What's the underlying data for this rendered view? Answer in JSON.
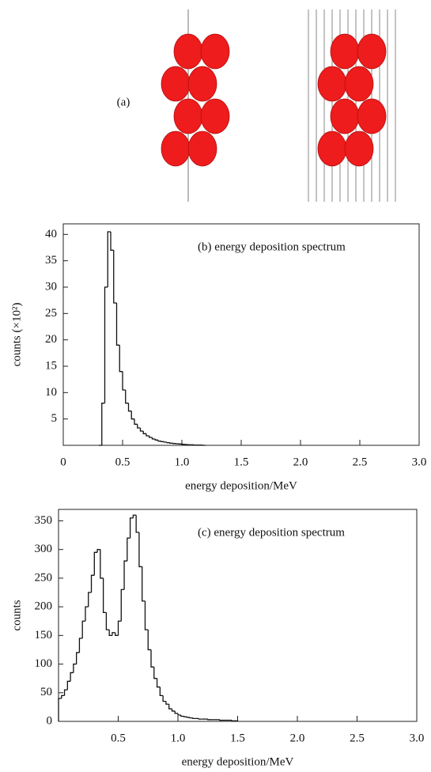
{
  "panel_a": {
    "label": "(a)"
  },
  "chart_data": [
    {
      "type": "histogram",
      "annotation": "(b)  energy deposition spectrum",
      "x_label": "energy deposition/MeV",
      "y_label": "counts (×10²)",
      "bins": [
        0.3,
        0.325,
        0.35,
        0.375,
        0.4,
        0.425,
        0.45,
        0.475,
        0.5,
        0.525,
        0.55,
        0.575,
        0.6,
        0.625,
        0.65,
        0.675,
        0.7,
        0.725,
        0.75,
        0.775,
        0.8,
        0.825,
        0.85,
        0.875,
        0.9,
        0.925,
        0.95,
        0.975,
        1.0,
        1.025,
        1.05,
        1.075,
        1.1,
        1.125,
        1.15,
        1.175,
        1.2
      ],
      "counts": [
        0,
        8,
        30,
        40.5,
        37,
        27,
        19,
        14,
        10.5,
        8,
        6.5,
        5,
        4,
        3.3,
        2.7,
        2.2,
        1.8,
        1.5,
        1.2,
        1.0,
        0.8,
        0.7,
        0.6,
        0.5,
        0.4,
        0.35,
        0.3,
        0.25,
        0.2,
        0.15,
        0.1,
        0.1,
        0.05,
        0.05,
        0.05,
        0
      ],
      "color": "#111111",
      "xlim": [
        0,
        3
      ],
      "ylim": [
        0,
        42
      ],
      "xticks": [
        0,
        0.5,
        {
          "value": 1,
          "label": "1.0"
        },
        1.5,
        {
          "value": 2,
          "label": "2.0"
        },
        2.5,
        {
          "value": 3,
          "label": "3.0"
        }
      ],
      "yticks": [
        5,
        10,
        15,
        20,
        25,
        30,
        35,
        40
      ]
    },
    {
      "type": "histogram",
      "annotation": "(c)  energy deposition spectrum",
      "x_label": "energy deposition/MeV",
      "y_label": "counts",
      "bins": [
        0,
        0.025,
        0.05,
        0.075,
        0.1,
        0.125,
        0.15,
        0.175,
        0.2,
        0.225,
        0.25,
        0.275,
        0.3,
        0.325,
        0.35,
        0.375,
        0.4,
        0.425,
        0.45,
        0.475,
        0.5,
        0.525,
        0.55,
        0.575,
        0.6,
        0.625,
        0.65,
        0.675,
        0.7,
        0.725,
        0.75,
        0.775,
        0.8,
        0.825,
        0.85,
        0.875,
        0.9,
        0.925,
        0.95,
        0.975,
        1.0,
        1.025,
        1.05,
        1.075,
        1.1,
        1.125,
        1.15,
        1.175,
        1.2,
        1.225,
        1.25,
        1.275,
        1.3,
        1.325,
        1.35,
        1.375,
        1.4,
        1.425,
        1.45,
        1.475,
        1.5
      ],
      "counts": [
        40,
        45,
        55,
        70,
        85,
        100,
        120,
        145,
        175,
        200,
        225,
        255,
        295,
        300,
        250,
        190,
        160,
        150,
        155,
        150,
        175,
        230,
        280,
        320,
        355,
        360,
        330,
        270,
        210,
        160,
        125,
        95,
        75,
        60,
        45,
        35,
        30,
        22,
        18,
        14,
        11,
        9,
        8,
        7,
        6,
        5,
        5,
        4,
        4,
        4,
        3,
        3,
        3,
        3,
        2,
        2,
        2,
        2,
        1,
        1
      ],
      "color": "#111111",
      "xlim": [
        0,
        3
      ],
      "ylim": [
        0,
        370
      ],
      "xticks": [
        0.5,
        {
          "value": 1,
          "label": "1.0"
        },
        1.5,
        {
          "value": 2,
          "label": "2.0"
        },
        2.5,
        {
          "value": 3,
          "label": "3.0"
        }
      ],
      "yticks": [
        0,
        50,
        100,
        150,
        200,
        250,
        300,
        350
      ]
    }
  ]
}
